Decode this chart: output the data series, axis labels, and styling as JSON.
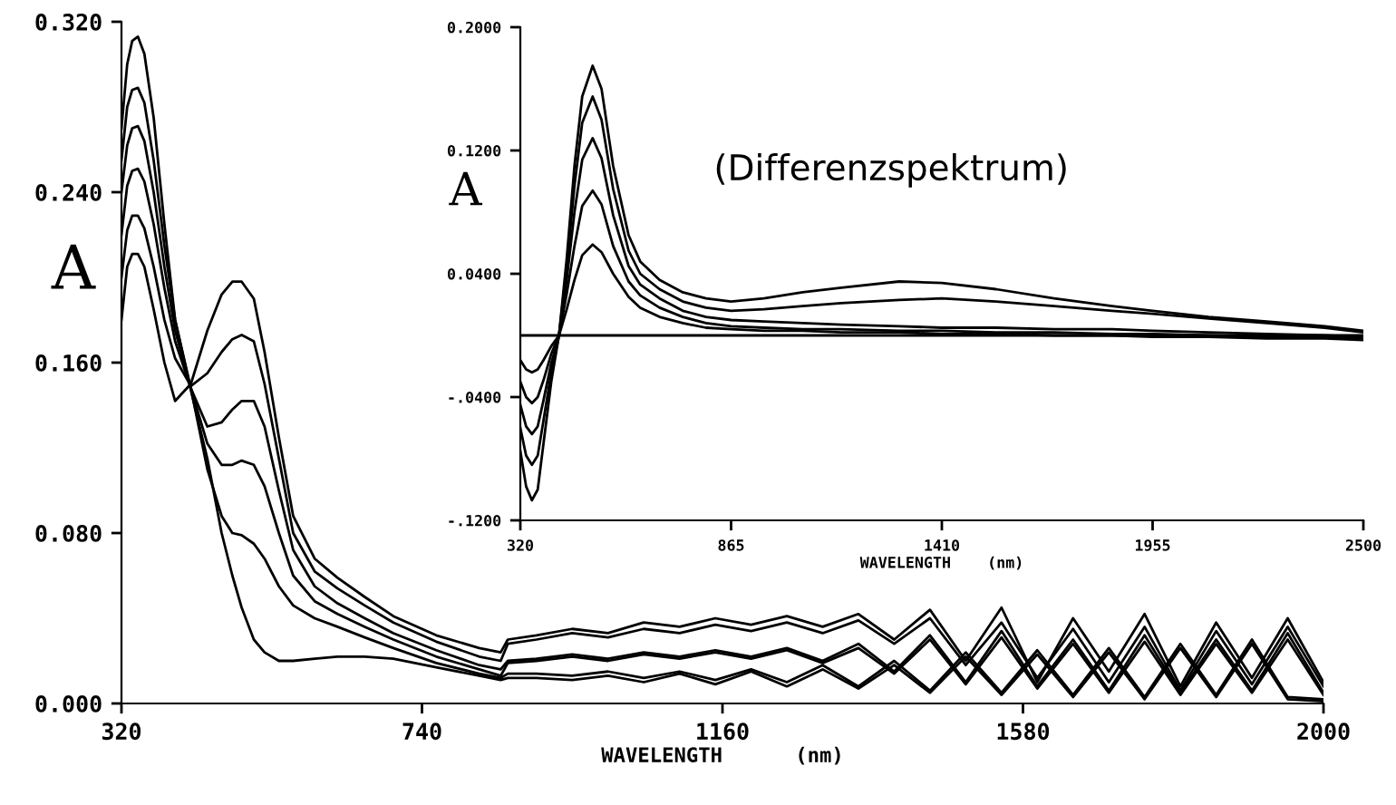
{
  "chart_data": [
    {
      "type": "line",
      "xlabel": "WAVELENGTH      (nm)",
      "ylabel": "A",
      "x": [
        320,
        328,
        335,
        343,
        352,
        365,
        380,
        395,
        417,
        440,
        460,
        475,
        488,
        505,
        520,
        540,
        560,
        590,
        622,
        660,
        700,
        760,
        820,
        850,
        860,
        900,
        950,
        1000,
        1050,
        1100,
        1150,
        1200,
        1250,
        1300,
        1350,
        1400,
        1450,
        1500,
        1550,
        1600,
        1650,
        1700,
        1750,
        1800,
        1850,
        1900,
        1950,
        2000
      ],
      "series": [
        {
          "color": "#000000",
          "values": [
            0.27,
            0.3,
            0.311,
            0.313,
            0.305,
            0.275,
            0.225,
            0.18,
            0.147,
            0.115,
            0.08,
            0.06,
            0.045,
            0.03,
            0.024,
            0.02,
            0.02,
            0.021,
            0.022,
            0.022,
            0.021,
            0.017,
            0.013,
            0.011,
            0.012,
            0.012,
            0.011,
            0.013,
            0.01,
            0.014,
            0.009,
            0.015,
            0.008,
            0.016,
            0.007,
            0.018,
            0.005,
            0.022,
            0.004,
            0.023,
            0.003,
            0.024,
            0.002,
            0.026,
            0.003,
            0.028,
            0.002,
            0.001
          ]
        },
        {
          "color": "#000000",
          "values": [
            0.255,
            0.28,
            0.288,
            0.289,
            0.282,
            0.255,
            0.215,
            0.18,
            0.148,
            0.11,
            0.088,
            0.08,
            0.079,
            0.075,
            0.068,
            0.055,
            0.046,
            0.04,
            0.036,
            0.031,
            0.026,
            0.019,
            0.014,
            0.012,
            0.014,
            0.014,
            0.013,
            0.015,
            0.012,
            0.015,
            0.011,
            0.016,
            0.01,
            0.018,
            0.008,
            0.02,
            0.006,
            0.024,
            0.005,
            0.025,
            0.004,
            0.026,
            0.003,
            0.028,
            0.004,
            0.03,
            0.003,
            0.002
          ]
        },
        {
          "color": "#000000",
          "values": [
            0.24,
            0.262,
            0.27,
            0.271,
            0.264,
            0.24,
            0.205,
            0.175,
            0.148,
            0.122,
            0.112,
            0.112,
            0.114,
            0.112,
            0.102,
            0.08,
            0.06,
            0.048,
            0.042,
            0.036,
            0.03,
            0.022,
            0.016,
            0.013,
            0.019,
            0.02,
            0.022,
            0.02,
            0.023,
            0.021,
            0.024,
            0.021,
            0.025,
            0.019,
            0.026,
            0.014,
            0.03,
            0.009,
            0.031,
            0.007,
            0.028,
            0.005,
            0.029,
            0.004,
            0.028,
            0.005,
            0.03,
            0.004
          ]
        },
        {
          "color": "#000000",
          "values": [
            0.22,
            0.243,
            0.25,
            0.251,
            0.245,
            0.225,
            0.195,
            0.17,
            0.148,
            0.13,
            0.132,
            0.138,
            0.142,
            0.142,
            0.13,
            0.1,
            0.072,
            0.055,
            0.047,
            0.04,
            0.033,
            0.025,
            0.018,
            0.016,
            0.02,
            0.021,
            0.023,
            0.021,
            0.024,
            0.022,
            0.025,
            0.022,
            0.026,
            0.02,
            0.028,
            0.015,
            0.032,
            0.01,
            0.034,
            0.008,
            0.03,
            0.006,
            0.032,
            0.005,
            0.03,
            0.006,
            0.033,
            0.005
          ]
        },
        {
          "color": "#000000",
          "values": [
            0.2,
            0.222,
            0.229,
            0.229,
            0.223,
            0.205,
            0.18,
            0.162,
            0.149,
            0.155,
            0.165,
            0.171,
            0.173,
            0.17,
            0.15,
            0.115,
            0.08,
            0.062,
            0.054,
            0.046,
            0.038,
            0.029,
            0.022,
            0.02,
            0.028,
            0.03,
            0.033,
            0.031,
            0.035,
            0.033,
            0.037,
            0.034,
            0.038,
            0.033,
            0.039,
            0.028,
            0.04,
            0.018,
            0.038,
            0.012,
            0.035,
            0.01,
            0.036,
            0.006,
            0.034,
            0.009,
            0.036,
            0.008
          ]
        },
        {
          "color": "#000000",
          "values": [
            0.18,
            0.205,
            0.211,
            0.211,
            0.205,
            0.185,
            0.16,
            0.142,
            0.15,
            0.175,
            0.192,
            0.198,
            0.198,
            0.19,
            0.165,
            0.125,
            0.088,
            0.068,
            0.059,
            0.05,
            0.041,
            0.032,
            0.026,
            0.024,
            0.03,
            0.032,
            0.035,
            0.033,
            0.038,
            0.036,
            0.04,
            0.037,
            0.041,
            0.036,
            0.042,
            0.03,
            0.044,
            0.02,
            0.045,
            0.01,
            0.04,
            0.015,
            0.042,
            0.008,
            0.038,
            0.012,
            0.04,
            0.01
          ]
        }
      ],
      "xlim": [
        320,
        2000
      ],
      "xticks": [
        320,
        740,
        1160,
        1580,
        2000
      ],
      "ylim": [
        0,
        0.32
      ],
      "yticks": [
        {
          "value": 0,
          "label": "0.000"
        },
        {
          "value": 0.08,
          "label": "0.080"
        },
        {
          "value": 0.16,
          "label": "0.160"
        },
        {
          "value": 0.24,
          "label": "0.240"
        },
        {
          "value": 0.32,
          "label": "0.320"
        }
      ]
    },
    {
      "type": "line",
      "xlabel": "WAVELENGTH    (nm)",
      "ylabel": "A",
      "annotations": [
        "(Differenzspektrum)"
      ],
      "x": [
        320,
        335,
        350,
        365,
        380,
        400,
        420,
        440,
        460,
        480,
        507,
        530,
        560,
        600,
        630,
        680,
        740,
        800,
        865,
        950,
        1050,
        1150,
        1300,
        1410,
        1550,
        1700,
        1850,
        1955,
        2100,
        2250,
        2400,
        2500
      ],
      "series": [
        {
          "color": "#000000",
          "values": [
            -0.075,
            -0.098,
            -0.107,
            -0.1,
            -0.07,
            -0.03,
            0.0,
            0.05,
            0.11,
            0.155,
            0.175,
            0.16,
            0.11,
            0.065,
            0.048,
            0.036,
            0.028,
            0.024,
            0.022,
            0.024,
            0.028,
            0.031,
            0.035,
            0.034,
            0.03,
            0.024,
            0.019,
            0.016,
            0.012,
            0.009,
            0.006,
            0.003
          ]
        },
        {
          "color": "#000000",
          "values": [
            -0.06,
            -0.078,
            -0.084,
            -0.078,
            -0.055,
            -0.024,
            0.0,
            0.044,
            0.097,
            0.138,
            0.155,
            0.14,
            0.095,
            0.055,
            0.04,
            0.03,
            0.022,
            0.018,
            0.016,
            0.017,
            0.019,
            0.021,
            0.023,
            0.024,
            0.022,
            0.019,
            0.016,
            0.014,
            0.011,
            0.008,
            0.005,
            0.002
          ]
        },
        {
          "color": "#000000",
          "values": [
            -0.045,
            -0.059,
            -0.064,
            -0.059,
            -0.042,
            -0.018,
            0.0,
            0.036,
            0.08,
            0.114,
            0.128,
            0.115,
            0.078,
            0.045,
            0.033,
            0.024,
            0.016,
            0.012,
            0.01,
            0.009,
            0.008,
            0.007,
            0.006,
            0.005,
            0.005,
            0.004,
            0.004,
            0.003,
            0.002,
            0.001,
            0.0,
            -0.001
          ]
        },
        {
          "color": "#000000",
          "values": [
            -0.03,
            -0.04,
            -0.044,
            -0.04,
            -0.029,
            -0.012,
            0.0,
            0.027,
            0.058,
            0.084,
            0.094,
            0.085,
            0.058,
            0.035,
            0.026,
            0.018,
            0.012,
            0.008,
            0.006,
            0.005,
            0.004,
            0.004,
            0.003,
            0.003,
            0.002,
            0.002,
            0.001,
            0.001,
            0.0,
            -0.001,
            -0.001,
            -0.002
          ]
        },
        {
          "color": "#000000",
          "values": [
            -0.016,
            -0.022,
            -0.024,
            -0.022,
            -0.016,
            -0.007,
            0.0,
            0.017,
            0.036,
            0.052,
            0.059,
            0.054,
            0.04,
            0.025,
            0.018,
            0.012,
            0.008,
            0.005,
            0.004,
            0.003,
            0.003,
            0.002,
            0.002,
            0.001,
            0.001,
            0.0,
            0.0,
            -0.001,
            -0.001,
            -0.002,
            -0.002,
            -0.003
          ]
        }
      ],
      "ref_lines": [
        {
          "axis": "y",
          "value": 0,
          "color": "#000000"
        }
      ],
      "xlim": [
        320,
        2500
      ],
      "xticks": [
        320,
        865,
        1410,
        1955,
        2500
      ],
      "ylim": [
        -0.12,
        0.2
      ],
      "yticks": [
        {
          "value": -0.12,
          "label": "-.1200"
        },
        {
          "value": -0.04,
          "label": "-.0400"
        },
        {
          "value": 0.04,
          "label": "0.0400"
        },
        {
          "value": 0.12,
          "label": "0.1200"
        },
        {
          "value": 0.2,
          "label": "0.2000"
        }
      ]
    }
  ]
}
